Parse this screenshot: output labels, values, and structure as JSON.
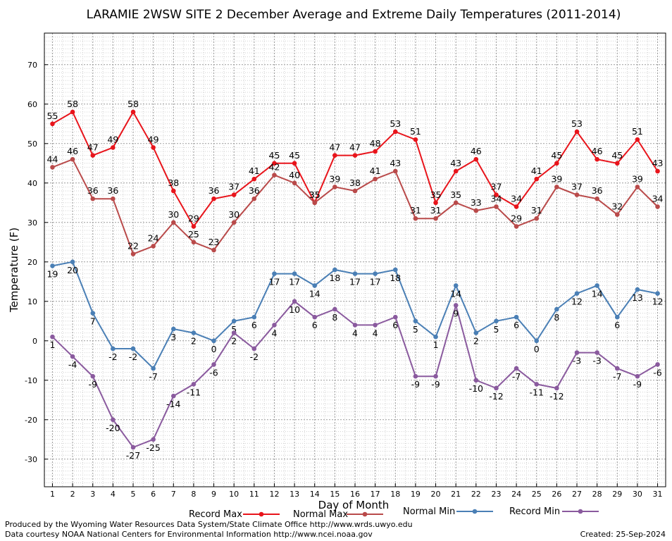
{
  "chart_data": {
    "type": "line",
    "title": "LARAMIE 2WSW SITE 2 December Average and Extreme Daily Temperatures (2011-2014)",
    "xlabel": "Day of Month",
    "ylabel": "Temperature (F)",
    "x": [
      1,
      2,
      3,
      4,
      5,
      6,
      7,
      8,
      9,
      10,
      11,
      12,
      13,
      14,
      15,
      16,
      17,
      18,
      19,
      20,
      21,
      22,
      23,
      24,
      25,
      26,
      27,
      28,
      29,
      30,
      31
    ],
    "xlim": [
      0.6,
      31.4
    ],
    "ylim": [
      -37,
      78
    ],
    "yticks": [
      -30,
      -20,
      -10,
      0,
      10,
      20,
      30,
      40,
      50,
      60,
      70
    ],
    "grid": true,
    "legend_position": "bottom",
    "series": [
      {
        "name": "Record Max",
        "color": "#e8141b",
        "values": [
          55,
          58,
          47,
          49,
          58,
          49,
          38,
          29,
          36,
          37,
          41,
          45,
          45,
          35,
          47,
          47,
          48,
          53,
          51,
          35,
          43,
          46,
          37,
          34,
          41,
          45,
          53,
          46,
          45,
          51,
          43
        ]
      },
      {
        "name": "Normal Max",
        "color": "#b94a4a",
        "values": [
          44,
          46,
          36,
          36,
          22,
          24,
          30,
          25,
          23,
          30,
          36,
          42,
          40,
          35,
          39,
          38,
          41,
          43,
          31,
          31,
          35,
          33,
          34,
          29,
          31,
          39,
          37,
          36,
          32,
          39,
          34
        ]
      },
      {
        "name": "Normal Min",
        "color": "#4a7fb5",
        "values": [
          19,
          20,
          7,
          -2,
          -2,
          -7,
          3,
          2,
          0,
          5,
          6,
          17,
          17,
          14,
          18,
          17,
          17,
          18,
          5,
          1,
          14,
          2,
          5,
          6,
          0,
          8,
          12,
          14,
          6,
          13,
          12
        ]
      },
      {
        "name": "Record Min",
        "color": "#8a5a9e",
        "values": [
          1,
          -4,
          -9,
          -20,
          -27,
          -25,
          -14,
          -11,
          -6,
          2,
          -2,
          4,
          10,
          6,
          8,
          4,
          4,
          6,
          -9,
          -9,
          9,
          -10,
          -12,
          -7,
          -11,
          -12,
          -3,
          -3,
          -7,
          -9,
          -6
        ]
      }
    ]
  },
  "footer": {
    "produced_by": "Produced by the Wyoming Water Resources Data System/State Climate Office http://www.wrds.uwyo.edu",
    "courtesy": "Data courtesy NOAA National Centers for Environmental Information http://www.ncei.noaa.gov",
    "created": "Created:  25-Sep-2024"
  }
}
